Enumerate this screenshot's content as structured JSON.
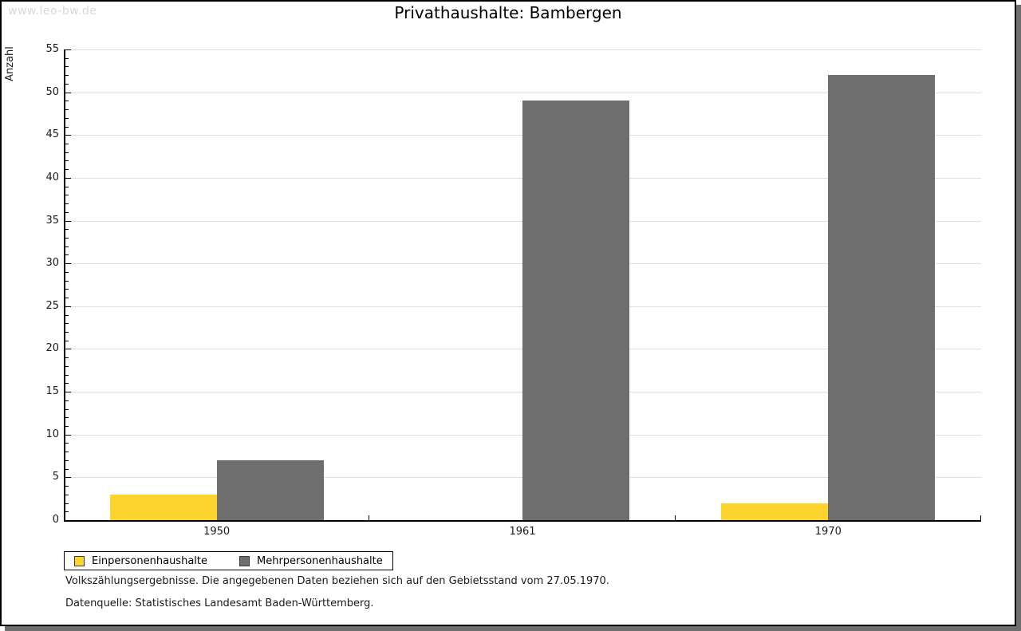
{
  "watermark": "www.leo-bw.de",
  "title": "Privathaushalte: Bambergen",
  "footnotes": {
    "line1": "Volkszählungsergebnisse. Die angegebenen Daten beziehen sich auf den Gebietsstand vom 27.05.1970.",
    "line2": "Datenquelle: Statistisches Landesamt Baden-Württemberg."
  },
  "colors": {
    "einpersonenhaushalte": "#FBD42D",
    "mehrpersonenhaushalte": "#6E6E6E",
    "gridline": "#E0E0E0",
    "shadow": "#6E6E6E",
    "watermark": "#D8D8D8"
  },
  "chart_data": {
    "type": "bar",
    "title": "Privathaushalte: Bambergen",
    "xlabel": "",
    "ylabel": "Anzahl",
    "categories": [
      "1950",
      "1961",
      "1970"
    ],
    "series": [
      {
        "name": "Einpersonenhaushalte",
        "color": "#FBD42D",
        "values": [
          3,
          0,
          2
        ]
      },
      {
        "name": "Mehrpersonenhaushalte",
        "color": "#6E6E6E",
        "values": [
          7,
          49,
          52
        ]
      }
    ],
    "ylim": [
      0,
      55
    ],
    "y_major_step": 5,
    "y_minor_step": 1,
    "grid": "horizontal",
    "legend_position": "bottom-left"
  }
}
